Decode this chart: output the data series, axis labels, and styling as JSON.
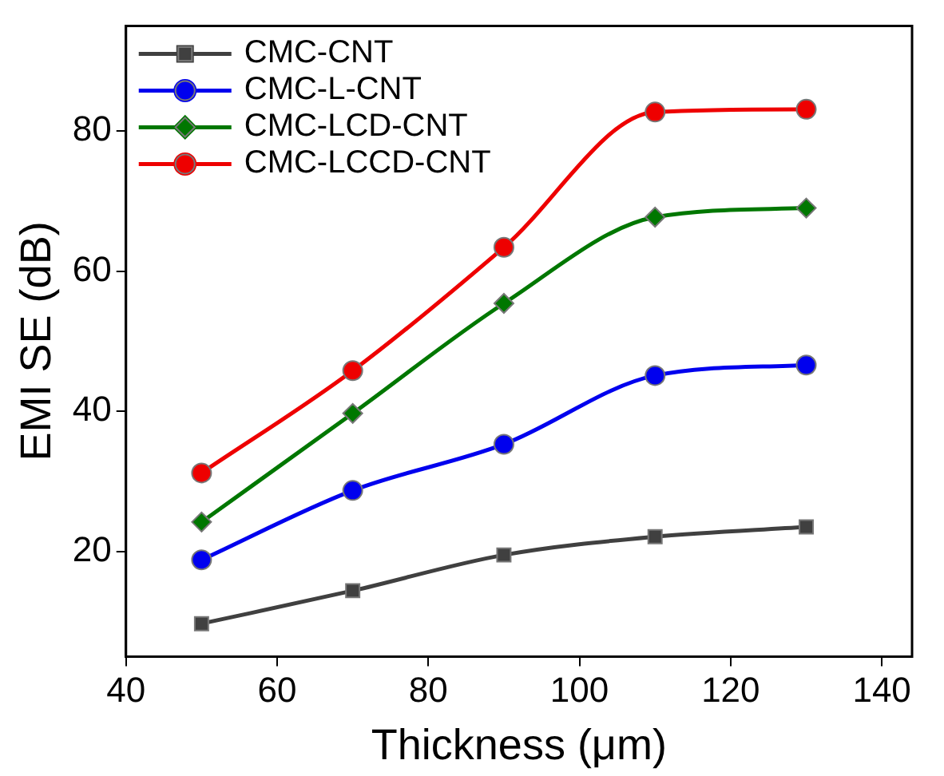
{
  "chart_data": {
    "type": "line",
    "xlabel": "Thickness (μm)",
    "ylabel": "EMI SE (dB)",
    "x": [
      50,
      70,
      90,
      110,
      130
    ],
    "series": [
      {
        "name": "CMC-CNT",
        "color": "#404040",
        "marker": "square",
        "values": [
          9.7,
          14.4,
          19.5,
          22.1,
          23.5
        ]
      },
      {
        "name": "CMC-L-CNT",
        "color": "#0000ee",
        "marker": "circle",
        "values": [
          18.8,
          28.7,
          35.3,
          45.1,
          46.6
        ]
      },
      {
        "name": "CMC-LCD-CNT",
        "color": "#007700",
        "marker": "diamond",
        "values": [
          24.2,
          39.7,
          55.4,
          67.7,
          69.0
        ]
      },
      {
        "name": "CMC-LCCD-CNT",
        "color": "#ee0000",
        "marker": "circle",
        "values": [
          31.2,
          45.8,
          63.4,
          82.7,
          83.1
        ]
      }
    ],
    "xlim": [
      40,
      144
    ],
    "xticks": [
      40,
      60,
      80,
      100,
      120,
      140
    ],
    "ylim": [
      5,
      95
    ],
    "yticks": [
      20,
      40,
      60,
      80
    ],
    "grid": false,
    "legend": "top left"
  }
}
